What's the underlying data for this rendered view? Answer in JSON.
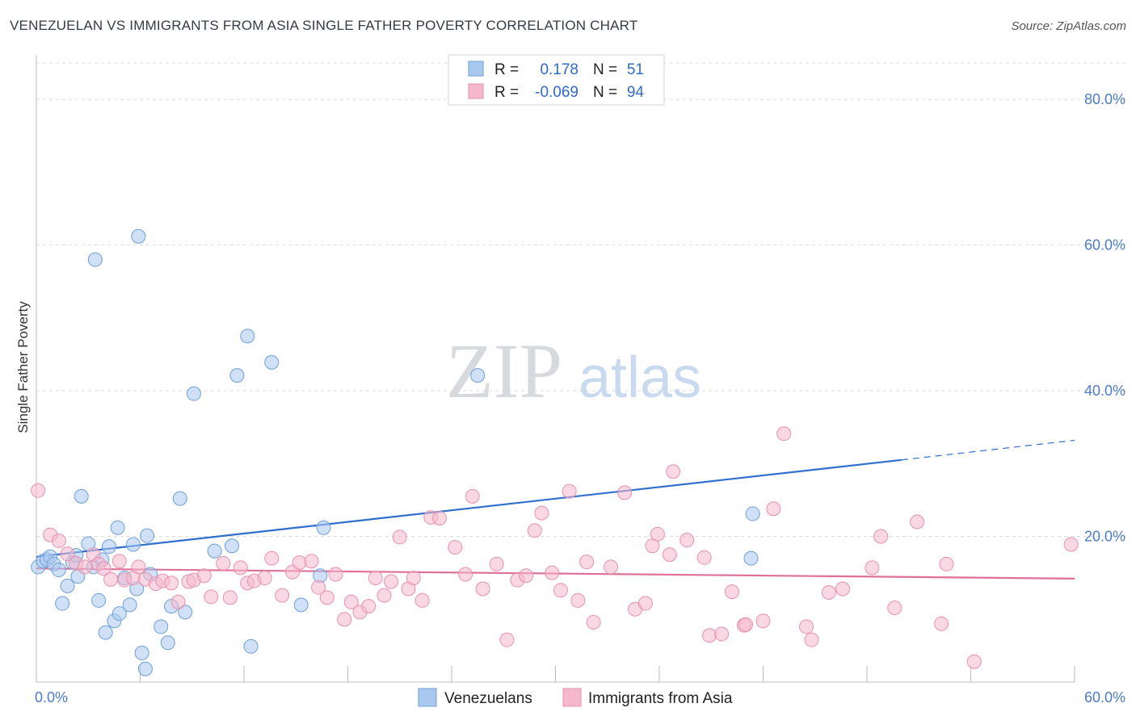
{
  "title": "VENEZUELAN VS IMMIGRANTS FROM ASIA SINGLE FATHER POVERTY CORRELATION CHART",
  "source": "Source: ZipAtlas.com",
  "watermark": {
    "zip": "ZIP",
    "atlas": "atlas"
  },
  "legend": {
    "rows": [
      {
        "r_label": "R =",
        "r_value": "0.178",
        "n_label": "N =",
        "n_value": "51",
        "color": "#a9c8f0"
      },
      {
        "r_label": "R =",
        "r_value": "-0.069",
        "n_label": "N =",
        "n_value": "94",
        "color": "#f5b8cc"
      }
    ]
  },
  "bottom_legend": [
    {
      "label": "Venezuelans",
      "color": "#a9c8f0"
    },
    {
      "label": "Immigrants from Asia",
      "color": "#f5b8cc"
    }
  ],
  "chart_data": {
    "type": "scatter",
    "title": "VENEZUELAN VS IMMIGRANTS FROM ASIA SINGLE FATHER POVERTY CORRELATION CHART",
    "xlabel": "",
    "ylabel": "Single Father Poverty",
    "xlim": [
      0,
      60
    ],
    "ylim": [
      0,
      85
    ],
    "x_tick_labels": [
      {
        "value": 0,
        "label": "0.0%"
      },
      {
        "value": 60,
        "label": "60.0%"
      }
    ],
    "y_tick_labels": [
      {
        "value": 20,
        "label": "20.0%"
      },
      {
        "value": 40,
        "label": "40.0%"
      },
      {
        "value": 60,
        "label": "60.0%"
      },
      {
        "value": 80,
        "label": "80.0%"
      }
    ],
    "series": [
      {
        "name": "Venezuelans",
        "color": "#6f9fd8",
        "fill": "#a9c8f0",
        "trend": {
          "x0": 0,
          "y0": 17.2,
          "x1": 50,
          "y1": 30.5,
          "dash_to_x": 60,
          "dash_to_y": 33.2
        },
        "points": [
          [
            0.1,
            15.8
          ],
          [
            0.4,
            16.6
          ],
          [
            0.6,
            16.8
          ],
          [
            0.8,
            17.2
          ],
          [
            1.0,
            16.2
          ],
          [
            1.3,
            15.4
          ],
          [
            1.5,
            10.8
          ],
          [
            1.8,
            13.2
          ],
          [
            2.1,
            16.4
          ],
          [
            2.3,
            17.4
          ],
          [
            2.4,
            14.5
          ],
          [
            2.6,
            25.5
          ],
          [
            3.0,
            19.0
          ],
          [
            3.3,
            15.8
          ],
          [
            3.4,
            58.0
          ],
          [
            3.6,
            11.2
          ],
          [
            3.8,
            16.8
          ],
          [
            4.0,
            6.8
          ],
          [
            4.2,
            18.6
          ],
          [
            4.5,
            8.4
          ],
          [
            4.7,
            21.2
          ],
          [
            4.8,
            9.4
          ],
          [
            5.1,
            14.3
          ],
          [
            5.4,
            10.6
          ],
          [
            5.6,
            18.9
          ],
          [
            5.8,
            12.8
          ],
          [
            5.9,
            61.2
          ],
          [
            6.1,
            4.0
          ],
          [
            6.3,
            1.8
          ],
          [
            6.4,
            20.1
          ],
          [
            6.6,
            14.8
          ],
          [
            7.2,
            7.6
          ],
          [
            7.6,
            5.4
          ],
          [
            7.8,
            10.4
          ],
          [
            8.3,
            25.2
          ],
          [
            8.6,
            9.6
          ],
          [
            9.1,
            39.6
          ],
          [
            10.3,
            18.0
          ],
          [
            11.3,
            18.7
          ],
          [
            11.6,
            42.1
          ],
          [
            12.2,
            47.5
          ],
          [
            12.4,
            4.9
          ],
          [
            13.6,
            43.9
          ],
          [
            15.3,
            10.6
          ],
          [
            16.4,
            14.6
          ],
          [
            16.6,
            21.2
          ],
          [
            25.5,
            42.1
          ],
          [
            41.4,
            23.1
          ],
          [
            41.3,
            17.0
          ]
        ]
      },
      {
        "name": "Immigrants from Asia",
        "color": "#e891ae",
        "fill": "#f5b8cc",
        "trend": {
          "x0": 0,
          "y0": 15.6,
          "x1": 60,
          "y1": 14.2
        },
        "points": [
          [
            0.1,
            26.3
          ],
          [
            0.8,
            20.2
          ],
          [
            1.3,
            19.4
          ],
          [
            1.8,
            17.6
          ],
          [
            2.3,
            16.3
          ],
          [
            2.8,
            15.8
          ],
          [
            3.3,
            17.5
          ],
          [
            3.6,
            16.2
          ],
          [
            3.9,
            15.6
          ],
          [
            4.3,
            14.1
          ],
          [
            4.8,
            16.6
          ],
          [
            5.1,
            14.0
          ],
          [
            5.6,
            14.3
          ],
          [
            5.9,
            15.8
          ],
          [
            6.3,
            14.1
          ],
          [
            6.9,
            13.5
          ],
          [
            7.3,
            13.9
          ],
          [
            7.8,
            13.6
          ],
          [
            8.2,
            11.0
          ],
          [
            8.8,
            13.8
          ],
          [
            9.1,
            14.0
          ],
          [
            9.7,
            14.6
          ],
          [
            10.1,
            11.7
          ],
          [
            10.8,
            16.3
          ],
          [
            11.2,
            11.6
          ],
          [
            11.8,
            15.7
          ],
          [
            12.2,
            13.6
          ],
          [
            12.6,
            13.9
          ],
          [
            13.2,
            14.3
          ],
          [
            13.6,
            17.0
          ],
          [
            14.2,
            11.9
          ],
          [
            14.8,
            15.1
          ],
          [
            15.2,
            16.4
          ],
          [
            15.9,
            16.6
          ],
          [
            16.3,
            13.0
          ],
          [
            16.8,
            11.6
          ],
          [
            17.3,
            14.8
          ],
          [
            17.8,
            8.6
          ],
          [
            18.2,
            11.0
          ],
          [
            18.7,
            9.6
          ],
          [
            19.2,
            10.4
          ],
          [
            19.6,
            14.3
          ],
          [
            20.1,
            11.9
          ],
          [
            20.5,
            13.8
          ],
          [
            21.0,
            19.9
          ],
          [
            21.5,
            12.8
          ],
          [
            21.8,
            14.3
          ],
          [
            22.3,
            11.2
          ],
          [
            22.8,
            22.6
          ],
          [
            23.3,
            22.5
          ],
          [
            24.2,
            18.5
          ],
          [
            24.8,
            14.8
          ],
          [
            25.2,
            25.5
          ],
          [
            25.8,
            12.8
          ],
          [
            26.6,
            16.2
          ],
          [
            27.2,
            5.8
          ],
          [
            27.8,
            14.0
          ],
          [
            28.3,
            14.6
          ],
          [
            28.8,
            20.8
          ],
          [
            29.2,
            23.2
          ],
          [
            29.8,
            15.0
          ],
          [
            30.3,
            12.6
          ],
          [
            30.8,
            26.2
          ],
          [
            31.3,
            11.2
          ],
          [
            31.8,
            16.5
          ],
          [
            32.2,
            8.2
          ],
          [
            33.2,
            15.8
          ],
          [
            34.0,
            26.0
          ],
          [
            34.6,
            10.0
          ],
          [
            35.2,
            10.8
          ],
          [
            35.6,
            18.7
          ],
          [
            35.9,
            20.3
          ],
          [
            36.6,
            17.5
          ],
          [
            36.8,
            28.9
          ],
          [
            37.6,
            19.5
          ],
          [
            38.6,
            17.1
          ],
          [
            38.9,
            6.4
          ],
          [
            39.6,
            6.6
          ],
          [
            40.2,
            12.4
          ],
          [
            40.9,
            7.8
          ],
          [
            41.0,
            7.9
          ],
          [
            42.0,
            8.4
          ],
          [
            42.6,
            23.8
          ],
          [
            43.2,
            34.1
          ],
          [
            44.5,
            7.6
          ],
          [
            44.8,
            5.8
          ],
          [
            45.8,
            12.3
          ],
          [
            46.6,
            12.8
          ],
          [
            48.3,
            15.7
          ],
          [
            48.8,
            20.0
          ],
          [
            49.6,
            10.2
          ],
          [
            50.9,
            22.0
          ],
          [
            52.3,
            8.0
          ],
          [
            52.6,
            16.2
          ],
          [
            54.2,
            2.8
          ],
          [
            59.8,
            18.9
          ]
        ]
      }
    ]
  }
}
